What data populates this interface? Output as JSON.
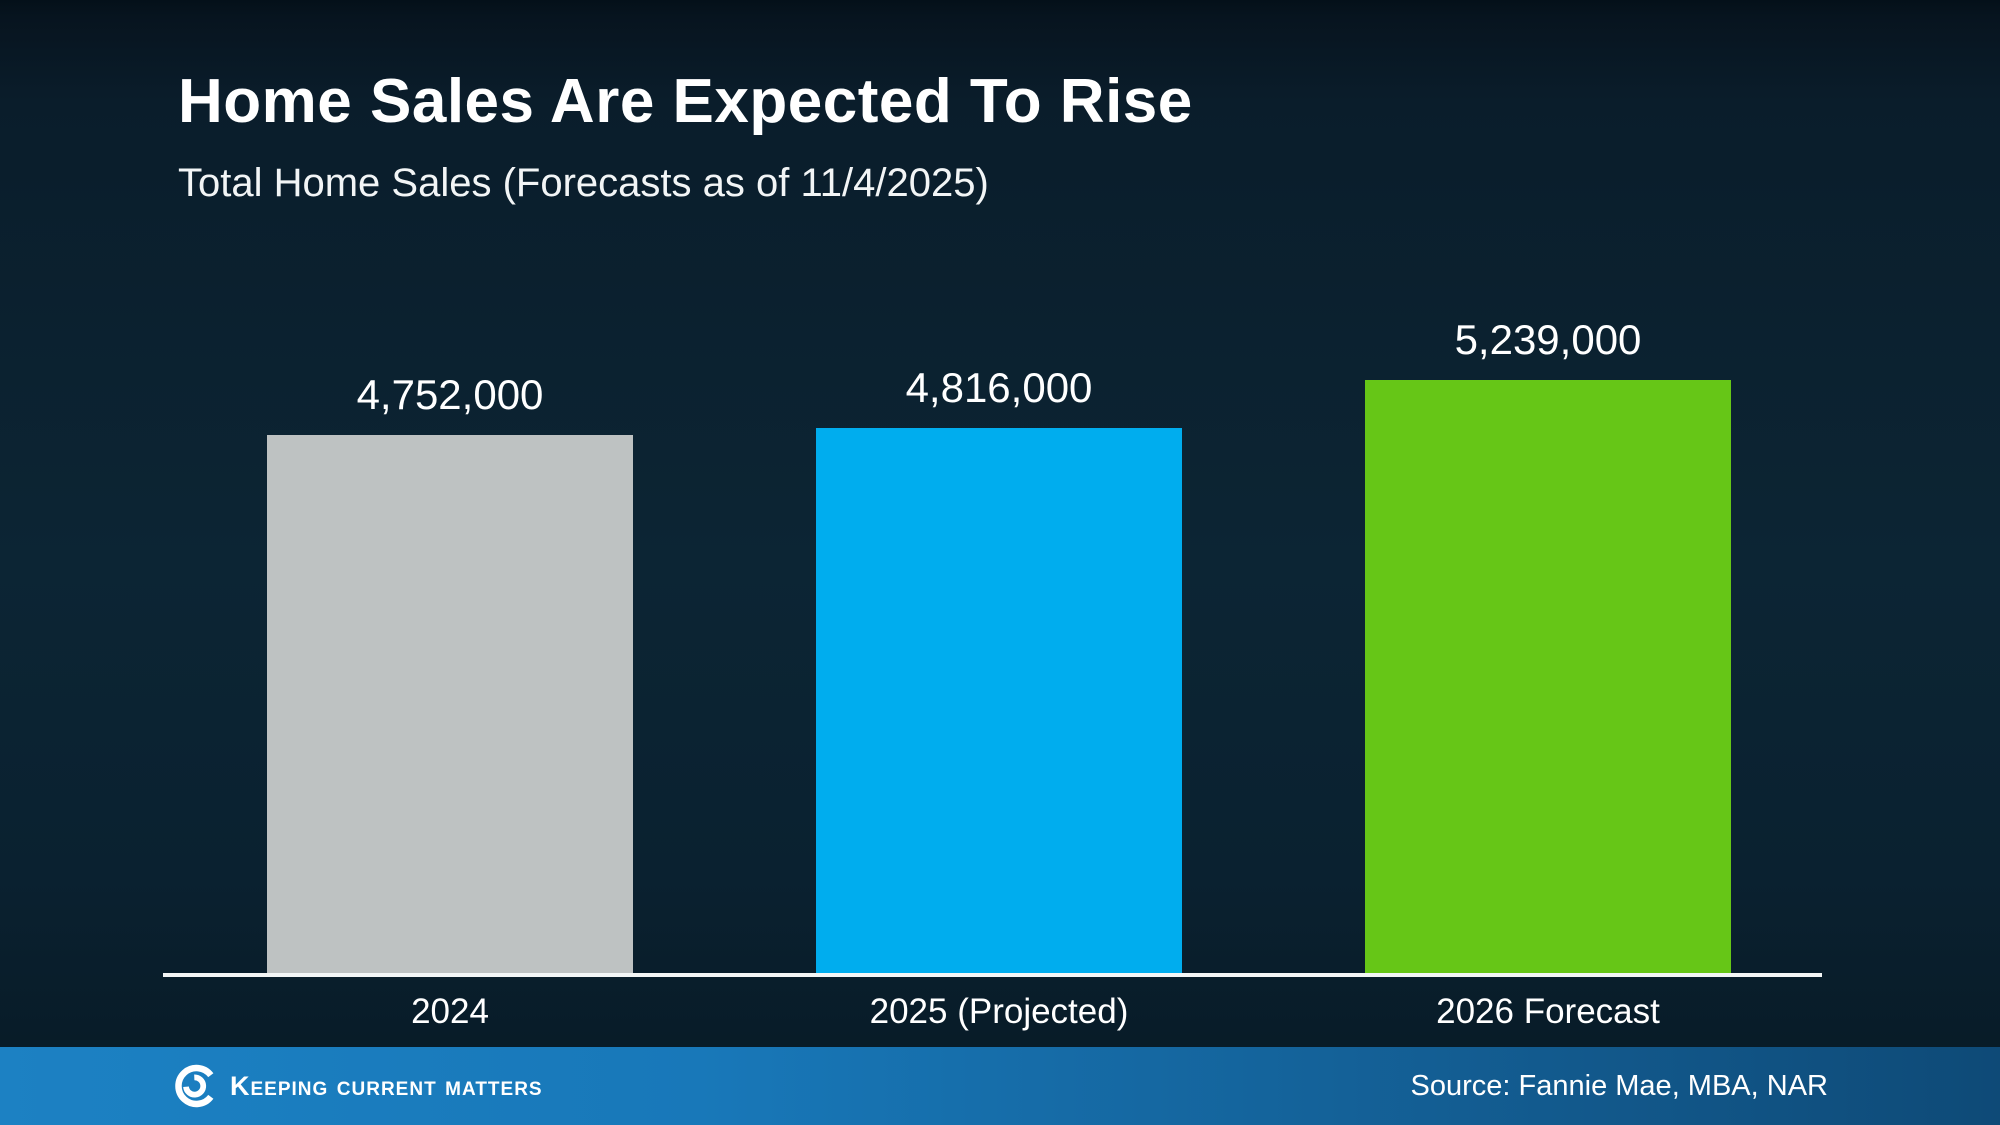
{
  "header": {
    "title": "Home Sales Are Expected To Rise",
    "subtitle": "Total Home Sales (Forecasts as of 11/4/2025)"
  },
  "chart_data": {
    "type": "bar",
    "title": "Home Sales Are Expected To Rise",
    "subtitle": "Total Home Sales (Forecasts as of 11/4/2025)",
    "categories": [
      "2024",
      "2025 (Projected)",
      "2026 Forecast"
    ],
    "values": [
      4752000,
      4816000,
      5239000
    ],
    "value_labels": [
      "4,752,000",
      "4,816,000",
      "5,239,000"
    ],
    "bar_colors": [
      "#bec2c2",
      "#00adee",
      "#66c617"
    ],
    "xlabel": "",
    "ylabel": "",
    "ylim": [
      0,
      5239000
    ],
    "grid": false,
    "legend": false,
    "axis_line_color": "#f3f6f6",
    "background_color": "#0c2534",
    "text_color": "#ffffff"
  },
  "footer": {
    "logo_text": "Keeping Current Matters",
    "source": "Source: Fannie Mae, MBA, NAR",
    "bar_color_left": "#1c81c3",
    "bar_color_right": "#0e4a77"
  }
}
